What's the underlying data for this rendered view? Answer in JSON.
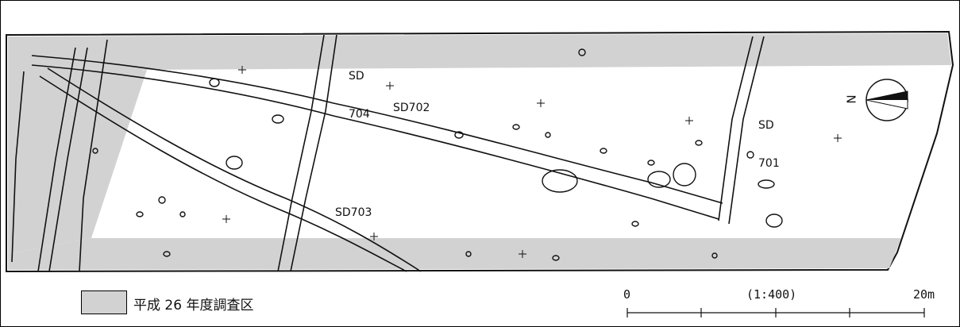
{
  "colors": {
    "survey_area": "#d2d2d2",
    "feature_line": "#111111",
    "background": "#ffffff"
  },
  "features": {
    "sd704": {
      "line1": "SD",
      "line2": "704"
    },
    "sd702": "SD702",
    "sd703": "SD703",
    "sd701": {
      "line1": "SD",
      "line2": "701"
    }
  },
  "north_arrow": {
    "label": "N",
    "icon": "north-arrow-icon"
  },
  "legend": {
    "label": "平成 26 年度調査区"
  },
  "scale_bar": {
    "start_label": "0",
    "ratio_label": "(1:400)",
    "end_label": "20m"
  }
}
